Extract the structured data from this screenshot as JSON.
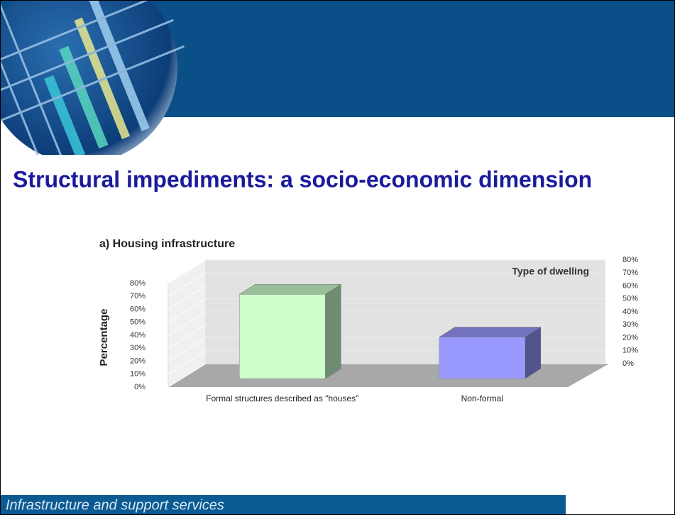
{
  "header": {
    "title": "Structural impediments: a socio-economic dimension"
  },
  "footer": {
    "text": "Infrastructure and support services"
  },
  "chart_data": {
    "type": "bar3d",
    "title": "a) Housing infrastructure",
    "ylabel": "Percentage",
    "xlabel": "Type of dwelling",
    "categories": [
      "Formal structures described as \"houses\"",
      "Non-formal"
    ],
    "values": [
      65,
      32
    ],
    "colors": [
      "#ccffcc",
      "#9999ff"
    ],
    "ylim": [
      0,
      80
    ],
    "yticks": [
      {
        "value": 0,
        "label": "0%"
      },
      {
        "value": 10,
        "label": "10%"
      },
      {
        "value": 20,
        "label": "20%"
      },
      {
        "value": 30,
        "label": "30%"
      },
      {
        "value": 40,
        "label": "40%"
      },
      {
        "value": 50,
        "label": "50%"
      },
      {
        "value": 60,
        "label": "60%"
      },
      {
        "value": 70,
        "label": "70%"
      },
      {
        "value": 80,
        "label": "80%"
      }
    ],
    "y2lim": [
      0,
      80
    ],
    "y2ticks": [
      {
        "value": 0,
        "label": "0%"
      },
      {
        "value": 10,
        "label": "10%"
      },
      {
        "value": 20,
        "label": "20%"
      },
      {
        "value": 30,
        "label": "30%"
      },
      {
        "value": 40,
        "label": "40%"
      },
      {
        "value": 50,
        "label": "50%"
      },
      {
        "value": 60,
        "label": "60%"
      },
      {
        "value": 70,
        "label": "70%"
      },
      {
        "value": 80,
        "label": "80%"
      }
    ],
    "grid": true
  }
}
